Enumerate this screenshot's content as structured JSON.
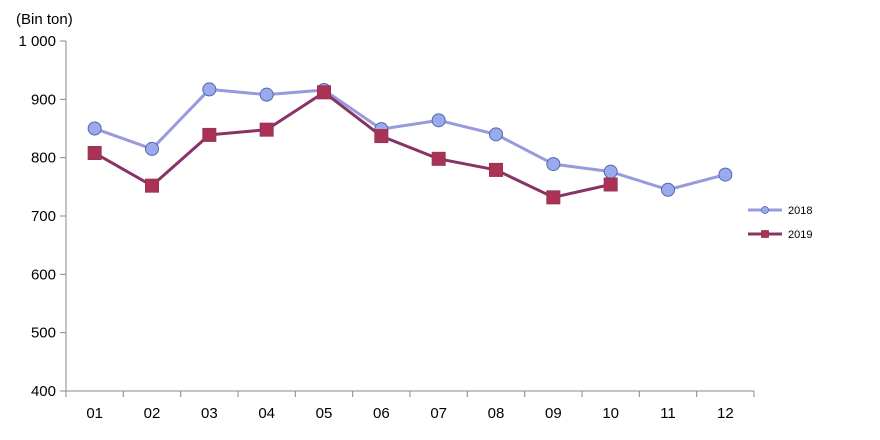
{
  "chart_data": {
    "type": "line",
    "title": "",
    "unit_label": "(Bin ton)",
    "xlabel": "",
    "ylabel": "",
    "categories": [
      "01",
      "02",
      "03",
      "04",
      "05",
      "06",
      "07",
      "08",
      "09",
      "10",
      "11",
      "12"
    ],
    "y_tick_labels": [
      "400",
      "500",
      "600",
      "700",
      "800",
      "900",
      "1 000"
    ],
    "ylim": [
      400,
      1000
    ],
    "y_ticks": [
      400,
      500,
      600,
      700,
      800,
      900,
      1000
    ],
    "grid": false,
    "legend_position": "right",
    "series": [
      {
        "name": "2018",
        "color": "#9999dd",
        "marker_fill": "#99aaee",
        "marker": "circle",
        "values": [
          850,
          815,
          917,
          908,
          916,
          849,
          864,
          840,
          789,
          776,
          745,
          771
        ]
      },
      {
        "name": "2019",
        "color": "#883366",
        "marker_fill": "#aa3355",
        "marker": "square",
        "values": [
          808,
          752,
          839,
          848,
          912,
          837,
          798,
          779,
          732,
          754,
          null,
          null
        ]
      }
    ]
  }
}
